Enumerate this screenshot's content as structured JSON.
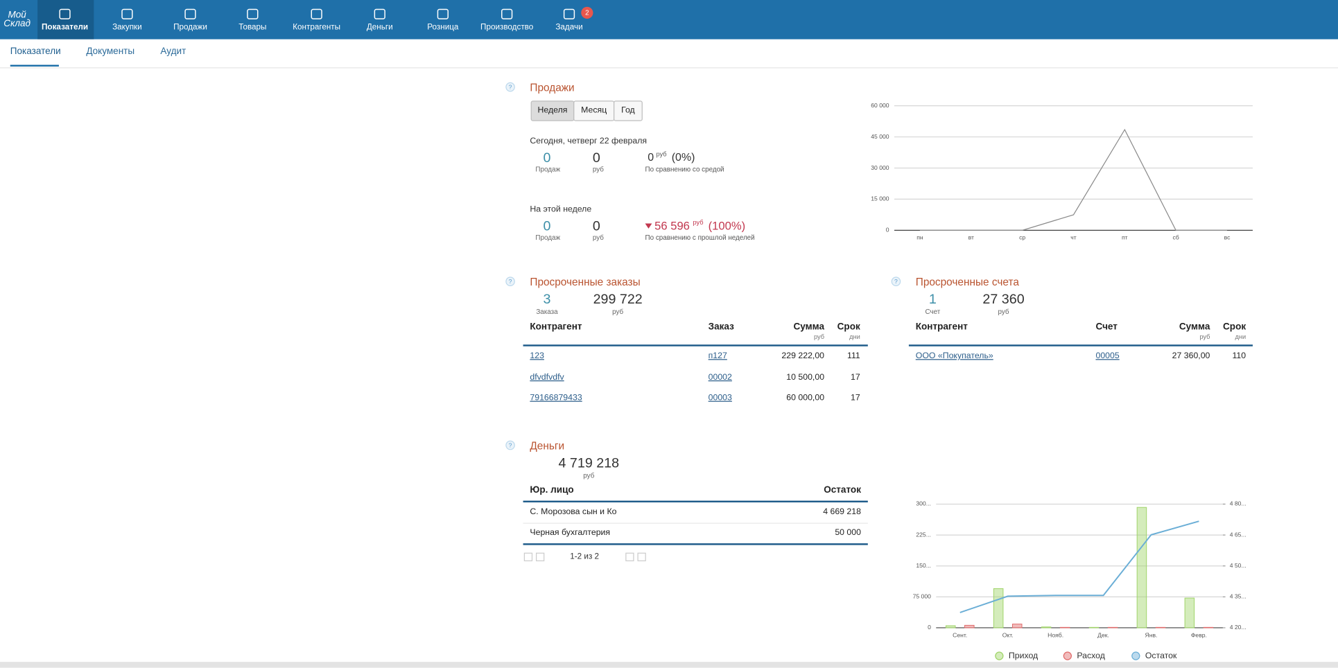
{
  "nav": {
    "logo": [
      "Мой",
      "Склад"
    ],
    "items": [
      "Показатели",
      "Закупки",
      "Продажи",
      "Товары",
      "Контрагенты",
      "Деньги",
      "Розница",
      "Производство",
      "Задачи"
    ],
    "badge": 2
  },
  "subnav": {
    "tabs": [
      "Показатели",
      "Документы",
      "Аудит"
    ]
  },
  "sales": {
    "help": "?",
    "title": "Продажи",
    "periods": [
      "Неделя",
      "Месяц",
      "Год"
    ],
    "today": {
      "label": "Сегодня, четверг 22 февраля",
      "count": 0,
      "count_unit": "Продаж",
      "sum": 0,
      "sum_unit": "руб",
      "diff": 0,
      "diff_unit": "руб",
      "diff_pct": "(0%)",
      "compare": "По сравнению со средой"
    },
    "week": {
      "label": "На этой неделе",
      "count": 0,
      "count_unit": "Продаж",
      "sum": 0,
      "sum_unit": "руб",
      "diff": "56 596",
      "diff_unit": "руб",
      "diff_pct": "(100%)",
      "compare": "По сравнению с прошлой неделей"
    }
  },
  "overdue_orders": {
    "help": "?",
    "title": "Просроченные заказы",
    "count": 3,
    "count_unit": "Заказа",
    "sum": "299 722",
    "sum_unit": "руб",
    "columns": [
      {
        "label": "Контрагент"
      },
      {
        "label": "Заказ"
      },
      {
        "label": "Сумма",
        "unit": "руб"
      },
      {
        "label": "Срок",
        "unit": "дни"
      }
    ],
    "rows": [
      [
        "123",
        "п127",
        "229 222,00",
        111
      ],
      [
        "dfvdfvdfv",
        "00002",
        "10 500,00",
        17
      ],
      [
        "79166879433",
        "00003",
        "60 000,00",
        17
      ]
    ]
  },
  "overdue_invoices": {
    "help": "?",
    "title": "Просроченные счета",
    "count": 1,
    "count_unit": "Счет",
    "sum": "27 360",
    "sum_unit": "руб",
    "columns": [
      {
        "label": "Контрагент"
      },
      {
        "label": "Счет"
      },
      {
        "label": "Сумма",
        "unit": "руб"
      },
      {
        "label": "Срок",
        "unit": "дни"
      }
    ],
    "rows": [
      [
        "ООО «Покупатель»",
        "00005",
        "27 360,00",
        110
      ]
    ]
  },
  "money": {
    "help": "?",
    "title": "Деньги",
    "sum": "4 719 218",
    "sum_unit": "руб",
    "columns": [
      "Юр. лицо",
      "Остаток"
    ],
    "rows": [
      [
        "С. Морозова сын и Ко",
        "4 669 218"
      ],
      [
        "Черная бухгалтерия",
        "50 000"
      ]
    ],
    "pager": "1-2 из 2"
  },
  "chart_data": [
    {
      "type": "line",
      "categories": [
        "пн",
        "вт",
        "ср",
        "чт",
        "пт",
        "сб",
        "вс"
      ],
      "series": [
        {
          "color": "#8a8a8a",
          "values": [
            0,
            0,
            0,
            7500,
            48500,
            0,
            0
          ]
        }
      ],
      "ylim": [
        0,
        60000
      ],
      "yticks": [
        0,
        {
          "value": 15000,
          "label": "15 000"
        },
        {
          "value": 30000,
          "label": "30 000"
        },
        {
          "value": 45000,
          "label": "45 000"
        },
        {
          "value": 60000,
          "label": "60 000"
        }
      ],
      "grid": true
    },
    {
      "type": "bar",
      "categories": [
        "Сент.",
        "Окт.",
        "Нояб.",
        "Дек.",
        "Янв.",
        "Февр."
      ],
      "series": [
        {
          "name": "Приход",
          "color": "#9fd468",
          "values": [
            5000,
            95000,
            2000,
            1000,
            292000,
            72000
          ]
        },
        {
          "name": "Расход",
          "color": "#e06a6a",
          "values": [
            6000,
            9000,
            1000,
            1000,
            1000,
            1000
          ]
        },
        {
          "name": "Остаток",
          "type": "line",
          "axis": "y2",
          "color": "#6aaed6",
          "values": [
            4274000,
            4353000,
            4357000,
            4357000,
            4651000,
            4717000
          ]
        }
      ],
      "ylim": [
        0,
        300000
      ],
      "yticks": [
        0,
        {
          "value": 75000,
          "label": "75 000"
        },
        {
          "value": 150000,
          "label": "150..."
        },
        {
          "value": 225000,
          "label": "225..."
        },
        {
          "value": 300000,
          "label": "300..."
        }
      ],
      "y2lim": [
        4200000,
        4800000
      ],
      "y2ticks": [
        {
          "value": 4200000,
          "label": "4 20..."
        },
        {
          "value": 4350000,
          "label": "4 35..."
        },
        {
          "value": 4500000,
          "label": "4 50..."
        },
        {
          "value": 4650000,
          "label": "4 65..."
        },
        {
          "value": 4800000,
          "label": "4 80..."
        }
      ],
      "grid": true,
      "legend": "bottom"
    }
  ]
}
